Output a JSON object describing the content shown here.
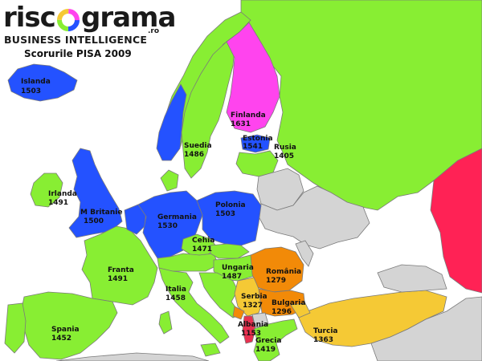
{
  "brand": {
    "logo_left": "risc",
    "logo_right": "grama",
    "logo_suffix": ".ro",
    "tagline": "BUSINESS INTELLIGENCE"
  },
  "map_title": "Scorurile PISA 2009",
  "colors": {
    "sea": "#ffffff",
    "no_data": "#d4d4d4",
    "high": "#2452ff",
    "top": "#ff44ee",
    "mid": "#88ee33",
    "low_mid": "#f5c935",
    "low": "#f28a08",
    "very_low": "#e8304f",
    "outside": "#ff2255"
  },
  "countries": [
    {
      "name": "Islanda",
      "score": "1503",
      "color": "#2452ff"
    },
    {
      "name": "Finlanda",
      "score": "1631",
      "color": "#ff44ee"
    },
    {
      "name": "Suedia",
      "score": "1486",
      "color": "#88ee33"
    },
    {
      "name": "Estonia",
      "score": "1541",
      "color": "#2452ff"
    },
    {
      "name": "Rusia",
      "score": "1405",
      "color": "#88ee33"
    },
    {
      "name": "Irlanda",
      "score": "1491",
      "color": "#88ee33"
    },
    {
      "name": "M Britanie",
      "score": "1500",
      "color": "#2452ff"
    },
    {
      "name": "Germania",
      "score": "1530",
      "color": "#2452ff"
    },
    {
      "name": "Polonia",
      "score": "1503",
      "color": "#2452ff"
    },
    {
      "name": "Cehia",
      "score": "1471",
      "color": "#88ee33"
    },
    {
      "name": "Franta",
      "score": "1491",
      "color": "#88ee33"
    },
    {
      "name": "Ungaria",
      "score": "1487",
      "color": "#88ee33"
    },
    {
      "name": "România",
      "score": "1279",
      "color": "#f28a08"
    },
    {
      "name": "Italia",
      "score": "1458",
      "color": "#88ee33"
    },
    {
      "name": "Serbia",
      "score": "1327",
      "color": "#f5c935"
    },
    {
      "name": "Bulgaria",
      "score": "1296",
      "color": "#f28a08"
    },
    {
      "name": "Spania",
      "score": "1452",
      "color": "#88ee33"
    },
    {
      "name": "Albania",
      "score": "1153",
      "color": "#e8304f"
    },
    {
      "name": "Turcia",
      "score": "1363",
      "color": "#f5c935"
    },
    {
      "name": "Grecia",
      "score": "1419",
      "color": "#88ee33"
    }
  ]
}
